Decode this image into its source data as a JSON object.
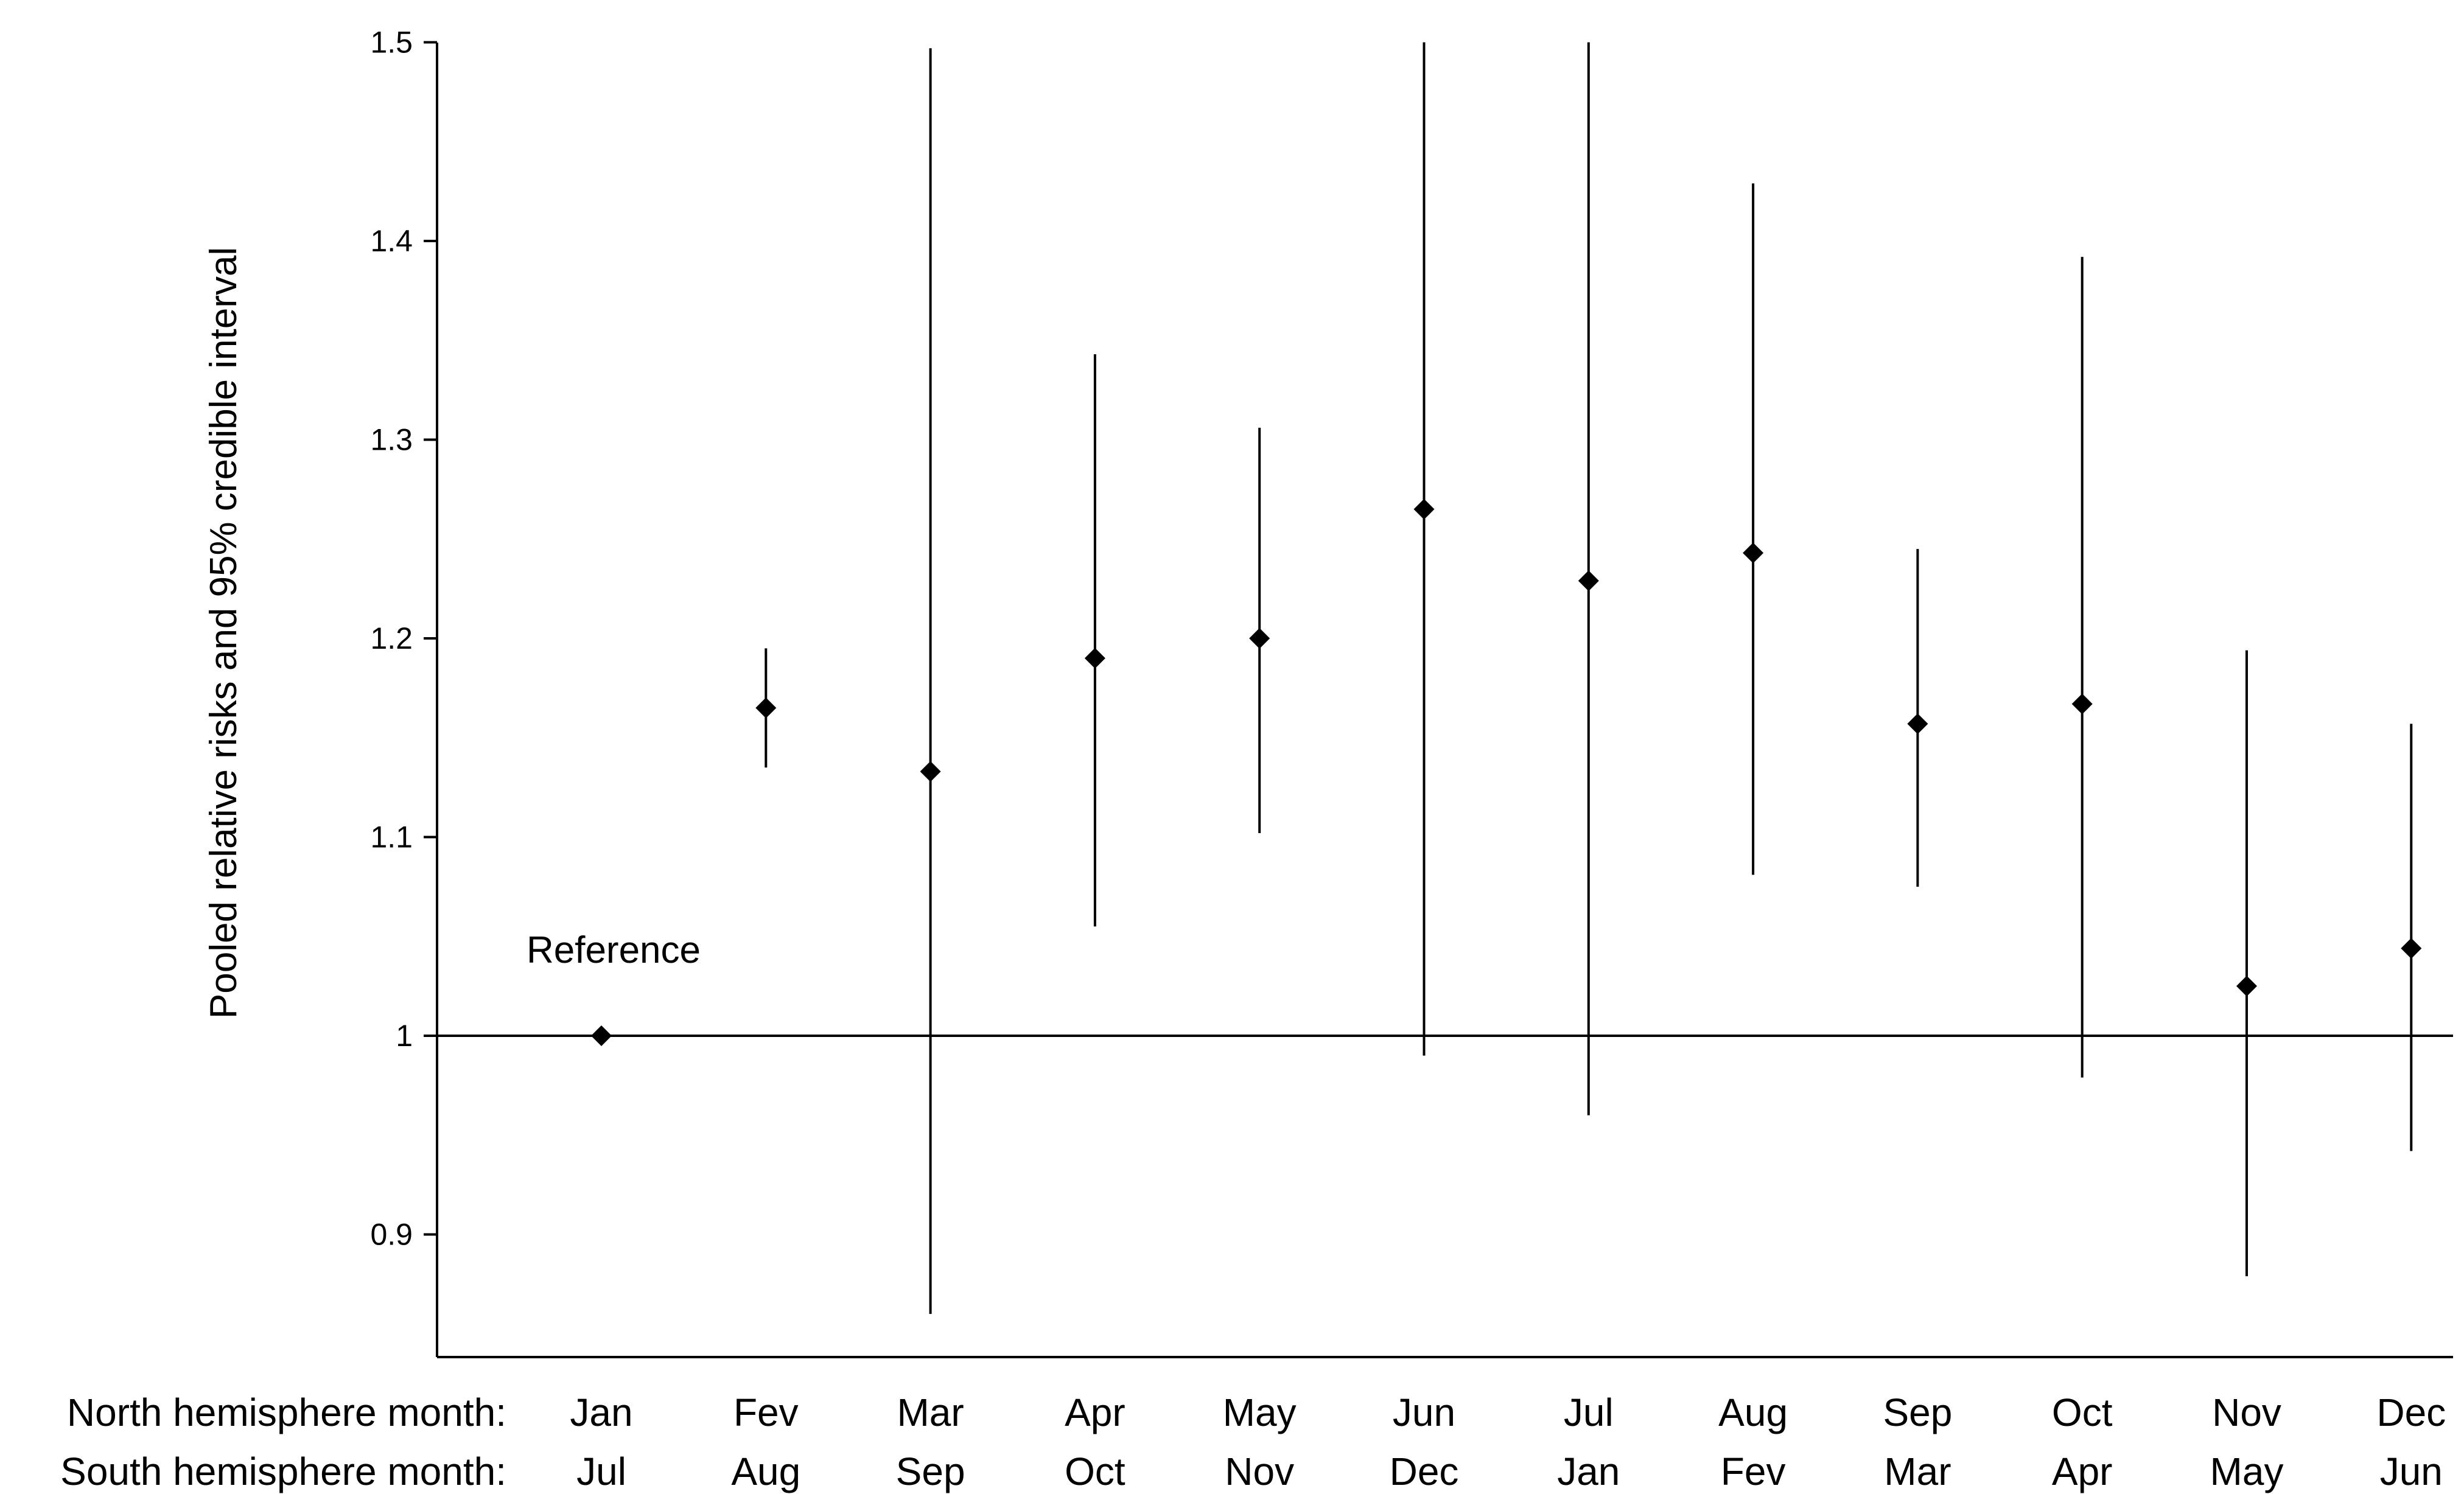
{
  "chart_data": {
    "type": "scatter",
    "title": "",
    "ylabel": "Pooled relative risks  and 95% credible interval",
    "ylim": [
      0.85,
      1.5
    ],
    "yticks": [
      0.9,
      1,
      1.1,
      1.2,
      1.3,
      1.4,
      1.5
    ],
    "ytick_labels": [
      "0.9",
      "1",
      "1.1",
      "1.2",
      "1.3",
      "1.4",
      "1.5"
    ],
    "reference_line": 1,
    "annotation": "Reference",
    "grid": false,
    "legend": "none",
    "row_labels": [
      "North hemisphere month:",
      "South hemisphere month:"
    ],
    "north_months": [
      "Jan",
      "Fev",
      "Mar",
      "Apr",
      "May",
      "Jun",
      "Jul",
      "Aug",
      "Sep",
      "Oct",
      "Nov",
      "Dec"
    ],
    "south_months": [
      "Jul",
      "Aug",
      "Sep",
      "Oct",
      "Nov",
      "Dec",
      "Jan",
      "Fev",
      "Mar",
      "Apr",
      "May",
      "Jun"
    ],
    "rr": [
      1.0,
      1.165,
      1.133,
      1.19,
      1.2,
      1.265,
      1.229,
      1.243,
      1.157,
      1.167,
      1.025,
      1.044
    ],
    "lower": [
      null,
      1.135,
      0.86,
      1.055,
      1.102,
      0.99,
      0.96,
      1.081,
      1.075,
      0.979,
      0.879,
      0.942
    ],
    "upper": [
      null,
      1.195,
      1.497,
      1.343,
      1.306,
      1.5,
      1.5,
      1.429,
      1.245,
      1.392,
      1.194,
      1.157
    ],
    "marker_color": "#000000"
  }
}
